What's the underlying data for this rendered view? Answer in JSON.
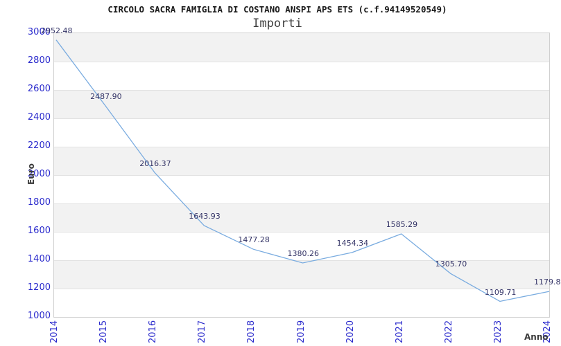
{
  "chart_data": {
    "type": "line",
    "title": "CIRCOLO SACRA FAMIGLIA DI COSTANO ANSPI APS ETS (c.f.94149520549)",
    "subtitle": "Importi",
    "xlabel": "Anno",
    "ylabel": "Euro",
    "categories": [
      "2014",
      "2015",
      "2016",
      "2017",
      "2018",
      "2019",
      "2020",
      "2021",
      "2022",
      "2023",
      "2024"
    ],
    "values": [
      2952.48,
      2487.9,
      2016.37,
      1643.93,
      1477.28,
      1380.26,
      1454.34,
      1585.29,
      1305.7,
      1109.71,
      1179.8
    ],
    "point_labels": [
      "2952.48",
      "2487.90",
      "2016.37",
      "1643.93",
      "1477.28",
      "1380.26",
      "1454.34",
      "1585.29",
      "1305.70",
      "1109.71",
      "1179.8"
    ],
    "ylim": [
      1000,
      3000
    ],
    "ytick_step": 200,
    "grid": "horizontal-alternating-bands",
    "legend": "none",
    "colors": {
      "line": "#7aace0",
      "tick_label": "#2a2acc",
      "point_label": "#333366",
      "band_gray": "#f2f2f2",
      "band_white": "#ffffff",
      "grid_line": "#e2e2e2",
      "plot_border": "#d0d0d0",
      "title_text": "#1a1a1a",
      "subtitle_text": "#3d3d3d",
      "axis_label_text": "#3a3a3a"
    }
  }
}
